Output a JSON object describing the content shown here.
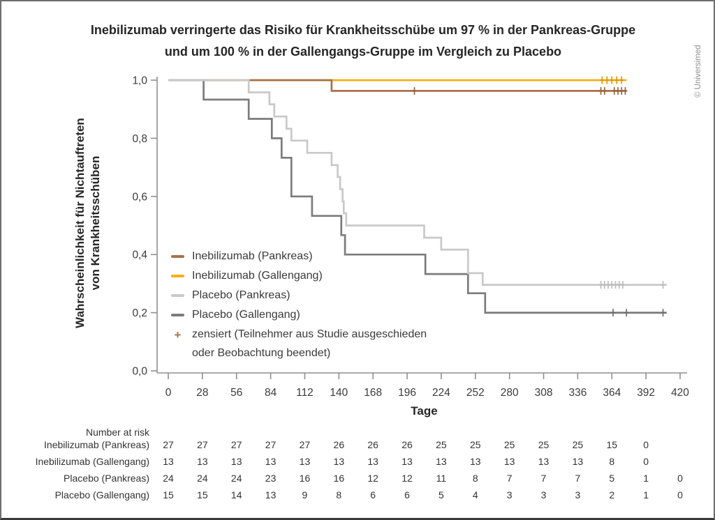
{
  "frame": {
    "copyright": "© Universimed"
  },
  "title": {
    "line1": "Inebilizumab verringerte das Risiko für Krankheitsschübe um 97 % in der Pankreas-Gruppe",
    "line2": "und um 100 % in der Gallengangs-Gruppe im Vergleich zu Placebo"
  },
  "y_axis": {
    "title_line1": "Wahrscheinlichkeit für Nichtauftreten",
    "title_line2": "von Krankheitsschüben",
    "tick_values": [
      0,
      0.2,
      0.4,
      0.6,
      0.8,
      1.0
    ],
    "tick_labels": [
      "0,0",
      "0,2",
      "0,4",
      "0,6",
      "0,8",
      "1,0"
    ]
  },
  "x_axis": {
    "title": "Tage",
    "ticks": [
      0,
      28,
      56,
      84,
      112,
      140,
      168,
      196,
      224,
      252,
      280,
      308,
      336,
      364,
      392,
      420
    ]
  },
  "legend": {
    "items": [
      {
        "marker": "line",
        "color": "#A9714B",
        "label": "Inebilizumab (Pankreas)"
      },
      {
        "marker": "line",
        "color": "#F7B015",
        "label": "Inebilizumab (Gallengang)"
      },
      {
        "marker": "line",
        "color": "#C9C9C9",
        "label": "Placebo (Pankreas)"
      },
      {
        "marker": "line",
        "color": "#7C7C7C",
        "label": "Placebo (Gallengang)"
      },
      {
        "marker": "plus",
        "color": "#A9714B",
        "label": "zensiert (Teilnehmer aus Studie ausgeschieden",
        "label2": "oder Beobachtung beendet)"
      }
    ]
  },
  "risk_table": {
    "header": "Number at risk",
    "days": [
      0,
      28,
      56,
      84,
      112,
      140,
      168,
      196,
      224,
      252,
      280,
      308,
      336,
      364,
      392,
      420
    ],
    "rows": [
      {
        "label": "Inebilizumab (Pankreas)",
        "values": [
          27,
          27,
          27,
          27,
          27,
          26,
          26,
          26,
          25,
          25,
          25,
          25,
          25,
          15,
          0
        ]
      },
      {
        "label": "Inebilizumab (Gallengang)",
        "values": [
          13,
          13,
          13,
          13,
          13,
          13,
          13,
          13,
          13,
          13,
          13,
          13,
          13,
          8,
          0
        ]
      },
      {
        "label": "Placebo (Pankreas)",
        "values": [
          24,
          24,
          24,
          23,
          16,
          16,
          12,
          12,
          11,
          8,
          7,
          7,
          7,
          5,
          1,
          0
        ]
      },
      {
        "label": "Placebo (Gallengang)",
        "values": [
          15,
          15,
          14,
          13,
          9,
          8,
          6,
          6,
          5,
          4,
          3,
          3,
          3,
          2,
          1,
          0
        ]
      }
    ]
  },
  "chart_data": {
    "type": "line",
    "subtype": "kaplan-meier-step",
    "title": "Inebilizumab verringerte das Risiko für Krankheitsschübe um 97 % in der Pankreas-Gruppe und um 100 % in der Gallengangs-Gruppe im Vergleich zu Placebo",
    "xlabel": "Tage",
    "ylabel": "Wahrscheinlichkeit für Nichtauftreten von Krankheitsschüben",
    "xlim": [
      0,
      420
    ],
    "ylim": [
      0,
      1.0
    ],
    "grid": false,
    "legend_position": "inside-left-middle",
    "series": [
      {
        "name": "Inebilizumab (Pankreas)",
        "color": "#A9714B",
        "censor_color": "#96653F",
        "step_points": [
          [
            0,
            1.0
          ],
          [
            134,
            0.963
          ]
        ],
        "end_x": 376,
        "censored_x": [
          202,
          355,
          358,
          366,
          369,
          372,
          375
        ]
      },
      {
        "name": "Inebilizumab (Gallengang)",
        "color": "#F7B015",
        "censor_color": "#DE9A00",
        "step_points": [
          [
            0,
            1.0
          ]
        ],
        "end_x": 376,
        "censored_x": [
          356,
          360,
          364,
          368,
          372
        ]
      },
      {
        "name": "Placebo (Pankreas)",
        "color": "#C9C9C9",
        "censor_color": "#BDBDBD",
        "step_points": [
          [
            0,
            1.0
          ],
          [
            66,
            0.958
          ],
          [
            83,
            0.917
          ],
          [
            87,
            0.875
          ],
          [
            97,
            0.833
          ],
          [
            101,
            0.792
          ],
          [
            114,
            0.75
          ],
          [
            134,
            0.708
          ],
          [
            139,
            0.667
          ],
          [
            141,
            0.625
          ],
          [
            143,
            0.583
          ],
          [
            144,
            0.542
          ],
          [
            146,
            0.5
          ],
          [
            210,
            0.458
          ],
          [
            224,
            0.417
          ],
          [
            246,
            0.336
          ],
          [
            258,
            0.296
          ]
        ],
        "end_x": 409,
        "censored_x": [
          355,
          358,
          361,
          364,
          367,
          370,
          373,
          406
        ]
      },
      {
        "name": "Placebo (Gallengang)",
        "color": "#7C7C7C",
        "censor_color": "#6F6F6F",
        "step_points": [
          [
            0,
            1.0
          ],
          [
            29,
            0.933
          ],
          [
            66,
            0.867
          ],
          [
            85,
            0.8
          ],
          [
            93,
            0.733
          ],
          [
            101,
            0.6
          ],
          [
            118,
            0.533
          ],
          [
            142,
            0.467
          ],
          [
            145,
            0.4
          ],
          [
            211,
            0.333
          ],
          [
            246,
            0.267
          ],
          [
            260,
            0.2
          ]
        ],
        "end_x": 409,
        "censored_x": [
          365,
          376,
          406
        ]
      }
    ]
  }
}
